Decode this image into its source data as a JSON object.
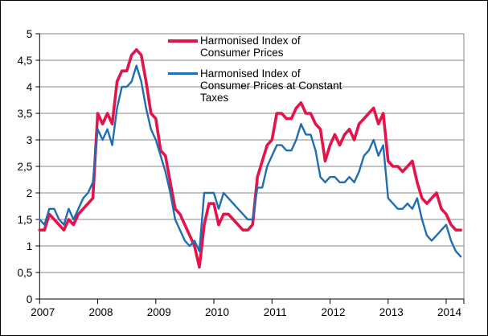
{
  "chart_data": {
    "type": "line",
    "title": "",
    "xlabel": "",
    "ylabel": "",
    "ylim": [
      0,
      5
    ],
    "y_tick_step": 0.5,
    "y_tick_labels": [
      "0",
      "0,5",
      "1",
      "1,5",
      "2",
      "2,5",
      "3",
      "3,5",
      "4",
      "4,5",
      "5"
    ],
    "x_tick_labels": [
      "2007",
      "2008",
      "2009",
      "2010",
      "2011",
      "2012",
      "2013",
      "2014"
    ],
    "x_unit": "month",
    "points_per_year": 12,
    "grid": "horizontal",
    "gridline_color": "#878787",
    "axis_color": "#000000",
    "legend_position": "top-inside",
    "series": [
      {
        "name": "Harmonised Index of Consumer Prices",
        "color": "#E41349",
        "width": 3.6,
        "values": [
          1.3,
          1.3,
          1.6,
          1.5,
          1.4,
          1.3,
          1.5,
          1.4,
          1.6,
          1.7,
          1.8,
          1.9,
          3.5,
          3.3,
          3.5,
          3.3,
          4.1,
          4.3,
          4.3,
          4.6,
          4.7,
          4.6,
          4.1,
          3.5,
          3.4,
          2.8,
          2.7,
          2.2,
          1.7,
          1.6,
          1.4,
          1.2,
          1.0,
          0.6,
          1.4,
          1.8,
          1.8,
          1.4,
          1.6,
          1.6,
          1.5,
          1.4,
          1.3,
          1.3,
          1.4,
          2.3,
          2.6,
          2.9,
          3.0,
          3.5,
          3.5,
          3.4,
          3.4,
          3.6,
          3.7,
          3.5,
          3.5,
          3.3,
          3.2,
          2.6,
          2.9,
          3.1,
          2.9,
          3.1,
          3.2,
          3.0,
          3.3,
          3.4,
          3.5,
          3.6,
          3.3,
          3.5,
          2.6,
          2.5,
          2.5,
          2.4,
          2.5,
          2.6,
          2.2,
          1.9,
          1.8,
          1.9,
          2.0,
          1.7,
          1.6,
          1.4,
          1.3,
          1.3
        ]
      },
      {
        "name": "Harmonised Index of Consumer Prices at Constant Taxes",
        "color": "#1F6EB3",
        "width": 2.4,
        "values": [
          1.5,
          1.4,
          1.7,
          1.7,
          1.5,
          1.4,
          1.7,
          1.5,
          1.7,
          1.9,
          2.0,
          2.2,
          3.2,
          3.0,
          3.2,
          2.9,
          3.6,
          4.0,
          4.0,
          4.1,
          4.4,
          4.1,
          3.6,
          3.2,
          3.0,
          2.7,
          2.4,
          2.0,
          1.5,
          1.3,
          1.1,
          1.0,
          1.1,
          0.9,
          2.0,
          2.0,
          2.0,
          1.7,
          2.0,
          1.9,
          1.8,
          1.7,
          1.6,
          1.5,
          1.5,
          2.1,
          2.1,
          2.5,
          2.7,
          2.9,
          2.9,
          2.8,
          2.8,
          3.0,
          3.3,
          3.1,
          3.1,
          2.8,
          2.3,
          2.2,
          2.3,
          2.3,
          2.2,
          2.2,
          2.3,
          2.2,
          2.4,
          2.7,
          2.8,
          3.0,
          2.7,
          2.9,
          1.9,
          1.8,
          1.7,
          1.7,
          1.8,
          1.7,
          1.9,
          1.5,
          1.2,
          1.1,
          1.2,
          1.3,
          1.4,
          1.1,
          0.9,
          0.8
        ]
      }
    ]
  }
}
